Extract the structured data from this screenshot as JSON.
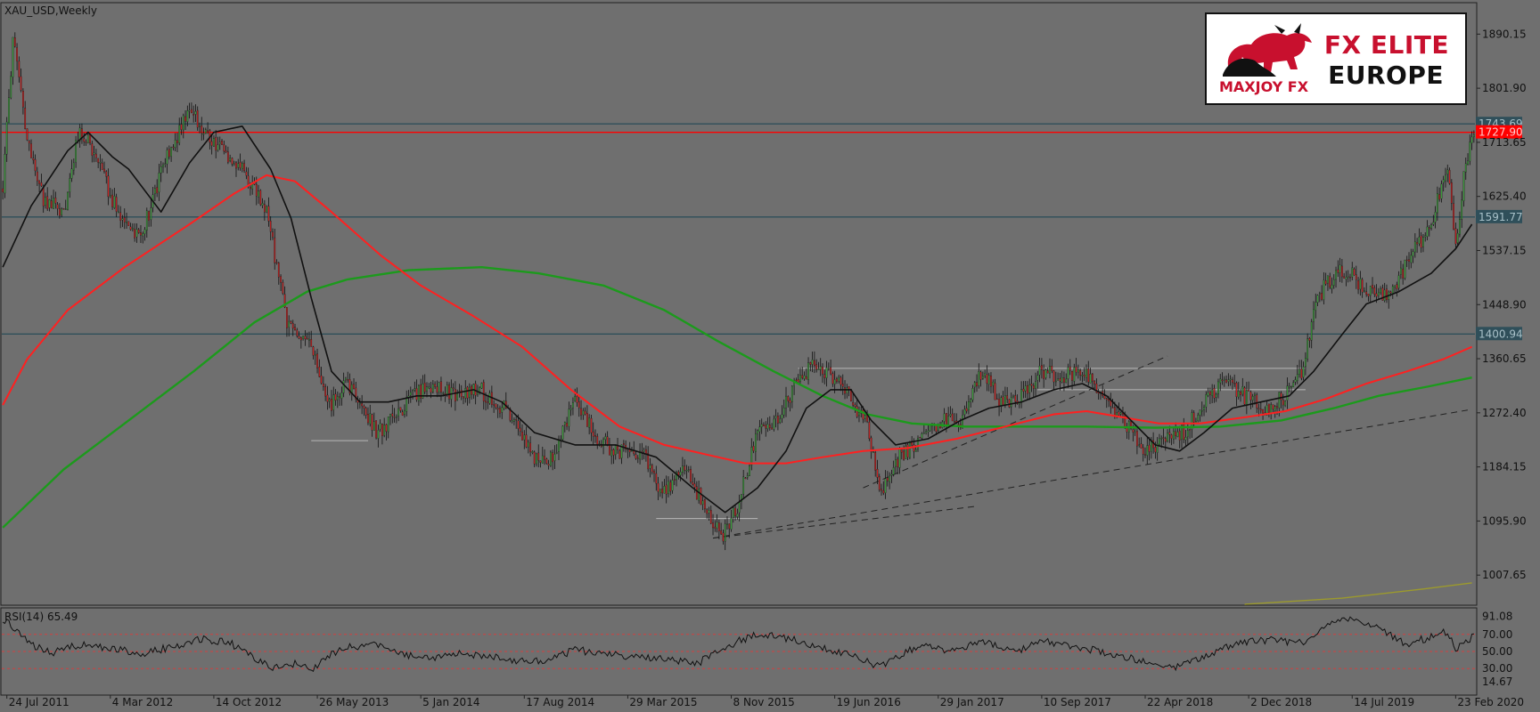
{
  "chart_data": {
    "type": "candlestick",
    "symbol_label": "XAU_USD,Weekly",
    "ylim": [
      960,
      1940
    ],
    "y_ticks": [
      "1890.15",
      "1801.90",
      "1713.65",
      "1625.40",
      "1537.15",
      "1448.90",
      "1360.65",
      "1272.40",
      "1184.15",
      "1095.90",
      "1007.65"
    ],
    "x_ticks": [
      "24 Jul 2011",
      "4 Mar 2012",
      "14 Oct 2012",
      "26 May 2013",
      "5 Jan 2014",
      "17 Aug 2014",
      "29 Mar 2015",
      "8 Nov 2015",
      "19 Jun 2016",
      "29 Jan 2017",
      "10 Sep 2017",
      "22 Apr 2018",
      "2 Dec 2018",
      "14 Jul 2019",
      "23 Feb 2020"
    ],
    "price_path": [
      [
        0,
        1640
      ],
      [
        5,
        1880
      ],
      [
        12,
        1720
      ],
      [
        20,
        1620
      ],
      [
        30,
        1600
      ],
      [
        38,
        1740
      ],
      [
        48,
        1670
      ],
      [
        58,
        1590
      ],
      [
        68,
        1560
      ],
      [
        80,
        1680
      ],
      [
        92,
        1770
      ],
      [
        102,
        1720
      ],
      [
        112,
        1690
      ],
      [
        122,
        1650
      ],
      [
        130,
        1600
      ],
      [
        140,
        1420
      ],
      [
        152,
        1380
      ],
      [
        160,
        1280
      ],
      [
        170,
        1320
      ],
      [
        185,
        1240
      ],
      [
        197,
        1280
      ],
      [
        210,
        1320
      ],
      [
        222,
        1300
      ],
      [
        235,
        1310
      ],
      [
        250,
        1270
      ],
      [
        262,
        1200
      ],
      [
        272,
        1200
      ],
      [
        282,
        1300
      ],
      [
        292,
        1230
      ],
      [
        302,
        1210
      ],
      [
        314,
        1210
      ],
      [
        326,
        1140
      ],
      [
        336,
        1180
      ],
      [
        346,
        1120
      ],
      [
        354,
        1070
      ],
      [
        362,
        1120
      ],
      [
        372,
        1240
      ],
      [
        382,
        1260
      ],
      [
        392,
        1330
      ],
      [
        400,
        1350
      ],
      [
        408,
        1330
      ],
      [
        416,
        1310
      ],
      [
        426,
        1250
      ],
      [
        432,
        1140
      ],
      [
        442,
        1200
      ],
      [
        452,
        1230
      ],
      [
        462,
        1260
      ],
      [
        472,
        1260
      ],
      [
        482,
        1340
      ],
      [
        492,
        1290
      ],
      [
        502,
        1300
      ],
      [
        512,
        1340
      ],
      [
        522,
        1330
      ],
      [
        532,
        1340
      ],
      [
        542,
        1310
      ],
      [
        552,
        1260
      ],
      [
        562,
        1210
      ],
      [
        572,
        1230
      ],
      [
        582,
        1240
      ],
      [
        592,
        1290
      ],
      [
        602,
        1320
      ],
      [
        612,
        1300
      ],
      [
        622,
        1280
      ],
      [
        632,
        1300
      ],
      [
        640,
        1340
      ],
      [
        648,
        1460
      ],
      [
        656,
        1500
      ],
      [
        664,
        1500
      ],
      [
        672,
        1470
      ],
      [
        680,
        1460
      ],
      [
        688,
        1490
      ],
      [
        696,
        1540
      ],
      [
        704,
        1580
      ],
      [
        712,
        1680
      ],
      [
        716,
        1540
      ],
      [
        720,
        1660
      ],
      [
        724,
        1720
      ]
    ],
    "price_noise": 14,
    "resistance_lines": [
      {
        "value": 1743.69,
        "label": "1743.69",
        "color": "#2f4f5a"
      },
      {
        "value": 1591.77,
        "label": "1591.77",
        "color": "#2f4f5a"
      },
      {
        "value": 1400.94,
        "label": "1400.94",
        "color": "#2f4f5a"
      }
    ],
    "current_price": {
      "value": 1730,
      "label": "1727.90",
      "color": "#ff0000"
    },
    "ma_short": [
      [
        0,
        1510
      ],
      [
        14,
        1610
      ],
      [
        32,
        1700
      ],
      [
        42,
        1730
      ],
      [
        54,
        1690
      ],
      [
        62,
        1670
      ],
      [
        78,
        1600
      ],
      [
        92,
        1680
      ],
      [
        104,
        1730
      ],
      [
        118,
        1740
      ],
      [
        132,
        1670
      ],
      [
        142,
        1590
      ],
      [
        152,
        1460
      ],
      [
        162,
        1340
      ],
      [
        176,
        1290
      ],
      [
        190,
        1290
      ],
      [
        204,
        1300
      ],
      [
        216,
        1300
      ],
      [
        232,
        1310
      ],
      [
        246,
        1290
      ],
      [
        262,
        1240
      ],
      [
        282,
        1220
      ],
      [
        302,
        1220
      ],
      [
        322,
        1200
      ],
      [
        340,
        1150
      ],
      [
        356,
        1110
      ],
      [
        372,
        1150
      ],
      [
        386,
        1210
      ],
      [
        396,
        1280
      ],
      [
        408,
        1310
      ],
      [
        418,
        1310
      ],
      [
        428,
        1260
      ],
      [
        440,
        1220
      ],
      [
        456,
        1230
      ],
      [
        472,
        1260
      ],
      [
        486,
        1280
      ],
      [
        502,
        1290
      ],
      [
        518,
        1310
      ],
      [
        532,
        1320
      ],
      [
        544,
        1300
      ],
      [
        556,
        1260
      ],
      [
        568,
        1220
      ],
      [
        580,
        1210
      ],
      [
        592,
        1240
      ],
      [
        606,
        1280
      ],
      [
        620,
        1290
      ],
      [
        634,
        1300
      ],
      [
        646,
        1340
      ],
      [
        660,
        1400
      ],
      [
        672,
        1450
      ],
      [
        688,
        1470
      ],
      [
        704,
        1500
      ],
      [
        716,
        1540
      ],
      [
        724,
        1580
      ]
    ],
    "ma_mid": [
      [
        0,
        1285
      ],
      [
        12,
        1360
      ],
      [
        32,
        1440
      ],
      [
        60,
        1510
      ],
      [
        92,
        1580
      ],
      [
        114,
        1630
      ],
      [
        130,
        1660
      ],
      [
        144,
        1650
      ],
      [
        162,
        1600
      ],
      [
        186,
        1530
      ],
      [
        206,
        1480
      ],
      [
        232,
        1430
      ],
      [
        256,
        1380
      ],
      [
        280,
        1310
      ],
      [
        304,
        1250
      ],
      [
        326,
        1220
      ],
      [
        346,
        1205
      ],
      [
        366,
        1190
      ],
      [
        386,
        1190
      ],
      [
        404,
        1200
      ],
      [
        424,
        1210
      ],
      [
        446,
        1215
      ],
      [
        470,
        1230
      ],
      [
        494,
        1250
      ],
      [
        518,
        1270
      ],
      [
        534,
        1275
      ],
      [
        552,
        1265
      ],
      [
        570,
        1255
      ],
      [
        590,
        1255
      ],
      [
        612,
        1265
      ],
      [
        632,
        1275
      ],
      [
        652,
        1295
      ],
      [
        672,
        1320
      ],
      [
        692,
        1340
      ],
      [
        710,
        1360
      ],
      [
        724,
        1380
      ]
    ],
    "ma_long": [
      [
        0,
        1085
      ],
      [
        30,
        1180
      ],
      [
        62,
        1260
      ],
      [
        94,
        1340
      ],
      [
        124,
        1420
      ],
      [
        150,
        1470
      ],
      [
        170,
        1490
      ],
      [
        200,
        1505
      ],
      [
        236,
        1510
      ],
      [
        264,
        1500
      ],
      [
        296,
        1480
      ],
      [
        326,
        1440
      ],
      [
        352,
        1390
      ],
      [
        380,
        1340
      ],
      [
        404,
        1300
      ],
      [
        426,
        1270
      ],
      [
        448,
        1255
      ],
      [
        474,
        1250
      ],
      [
        502,
        1250
      ],
      [
        534,
        1250
      ],
      [
        568,
        1248
      ],
      [
        600,
        1250
      ],
      [
        630,
        1260
      ],
      [
        656,
        1280
      ],
      [
        678,
        1300
      ],
      [
        702,
        1315
      ],
      [
        724,
        1330
      ]
    ],
    "ma_very_long": [
      [
        612,
        960
      ],
      [
        660,
        970
      ],
      [
        700,
        985
      ],
      [
        724,
        995
      ]
    ],
    "trendlines": [
      {
        "from": [
          350,
          1068
        ],
        "to": [
          724,
          1278
        ]
      },
      {
        "from": [
          424,
          1150
        ],
        "to": [
          574,
          1365
        ]
      },
      {
        "from": [
          350,
          1068
        ],
        "to": [
          480,
          1120
        ]
      }
    ],
    "horizontal_levels": [
      {
        "from": 152,
        "to": 180,
        "value": 1227
      },
      {
        "from": 322,
        "to": 372,
        "value": 1100
      },
      {
        "from": 392,
        "to": 642,
        "value": 1345
      },
      {
        "from": 510,
        "to": 642,
        "value": 1310
      }
    ],
    "rsi": {
      "label": "RSI(14) 65.49",
      "ylim": [
        0,
        100
      ],
      "y_ticks": [
        "91.08",
        "70.00",
        "50.00",
        "30.00",
        "14.67"
      ],
      "levels": [
        70,
        50,
        30
      ],
      "series": [
        [
          0,
          88
        ],
        [
          6,
          76
        ],
        [
          14,
          58
        ],
        [
          24,
          48
        ],
        [
          34,
          56
        ],
        [
          44,
          58
        ],
        [
          56,
          52
        ],
        [
          70,
          48
        ],
        [
          84,
          56
        ],
        [
          98,
          64
        ],
        [
          112,
          60
        ],
        [
          126,
          40
        ],
        [
          134,
          30
        ],
        [
          144,
          36
        ],
        [
          152,
          28
        ],
        [
          162,
          48
        ],
        [
          172,
          56
        ],
        [
          184,
          58
        ],
        [
          196,
          46
        ],
        [
          212,
          42
        ],
        [
          226,
          48
        ],
        [
          240,
          44
        ],
        [
          252,
          40
        ],
        [
          266,
          38
        ],
        [
          282,
          52
        ],
        [
          300,
          46
        ],
        [
          316,
          44
        ],
        [
          332,
          40
        ],
        [
          342,
          36
        ],
        [
          352,
          48
        ],
        [
          362,
          62
        ],
        [
          372,
          70
        ],
        [
          382,
          68
        ],
        [
          392,
          62
        ],
        [
          402,
          56
        ],
        [
          412,
          50
        ],
        [
          422,
          42
        ],
        [
          432,
          32
        ],
        [
          442,
          46
        ],
        [
          452,
          58
        ],
        [
          462,
          52
        ],
        [
          472,
          54
        ],
        [
          482,
          64
        ],
        [
          492,
          56
        ],
        [
          502,
          52
        ],
        [
          512,
          62
        ],
        [
          522,
          58
        ],
        [
          532,
          54
        ],
        [
          542,
          50
        ],
        [
          552,
          44
        ],
        [
          562,
          38
        ],
        [
          572,
          30
        ],
        [
          582,
          34
        ],
        [
          594,
          46
        ],
        [
          606,
          58
        ],
        [
          618,
          64
        ],
        [
          630,
          62
        ],
        [
          642,
          60
        ],
        [
          652,
          82
        ],
        [
          662,
          88
        ],
        [
          672,
          82
        ],
        [
          682,
          72
        ],
        [
          692,
          58
        ],
        [
          702,
          66
        ],
        [
          712,
          74
        ],
        [
          716,
          54
        ],
        [
          720,
          60
        ],
        [
          724,
          66
        ]
      ]
    }
  },
  "logo": {
    "line1": "FX ELITE",
    "line2": "EUROPE",
    "line3": "MAXJOY FX"
  }
}
